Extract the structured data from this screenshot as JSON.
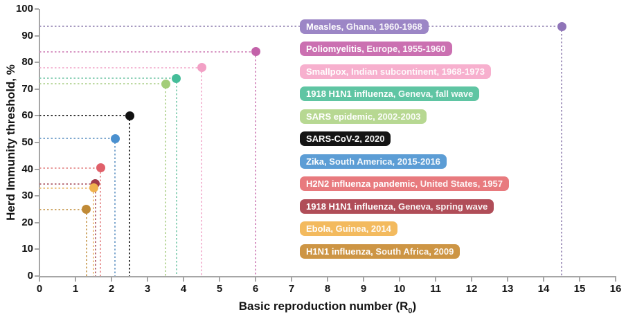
{
  "chart_data": {
    "type": "scatter",
    "title": "",
    "xlabel": "Basic reproduction number (R₀)",
    "xlabel_prefix": "Basic reproduction number (R",
    "xlabel_sub": "0",
    "xlabel_suffix": ")",
    "ylabel": "Herd Immunity threshold, %",
    "xlim": [
      0,
      16
    ],
    "ylim": [
      0,
      100
    ],
    "x_ticks": [
      0,
      1,
      2,
      3,
      4,
      5,
      6,
      7,
      8,
      9,
      10,
      11,
      12,
      13,
      14,
      15,
      16
    ],
    "y_ticks": [
      0,
      10,
      20,
      30,
      40,
      50,
      60,
      70,
      80,
      90,
      100
    ],
    "grid": false,
    "legend_position": "inside-plot-column",
    "axis_color": "#a6a6a6",
    "tick_label_color": "#141414",
    "series": [
      {
        "id": "measles",
        "name": "Measles",
        "detail": "Ghana, 1960-1968",
        "label": "Measles, Ghana, 1960-1968",
        "r0": 14.5,
        "hit": 93.5,
        "dot_color": "#8f74b8",
        "badge_color": "#9c86c6",
        "line_color": "#a79ac0"
      },
      {
        "id": "poliomyelitis",
        "name": "Poliomyelitis",
        "detail": "Europe, 1955-1960",
        "label": "Poliomyelitis, Europe, 1955-1960",
        "r0": 6.0,
        "hit": 84,
        "dot_color": "#c362a9",
        "badge_color": "#cb70b1",
        "line_color": "#d795c3"
      },
      {
        "id": "smallpox",
        "name": "Smallpox",
        "detail": "Indian subcontinent, 1968-1973",
        "label": "Smallpox, Indian subcontinent, 1968-1973",
        "r0": 4.5,
        "hit": 78,
        "dot_color": "#f2a0c5",
        "badge_color": "#f7b0ce",
        "line_color": "#f4b8d4"
      },
      {
        "id": "h1n1-1918-fall",
        "name": "1918 H1N1 influenza",
        "detail": "Geneva, fall wave",
        "label": "1918 H1N1 influenza, Geneva, fall wave",
        "r0": 3.8,
        "hit": 74,
        "dot_color": "#45bd99",
        "badge_color": "#5fc5a3",
        "line_color": "#8fd2b9"
      },
      {
        "id": "sars",
        "name": "SARS epidemic",
        "detail": "2002-2003",
        "label": "SARS epidemic, 2002-2003",
        "r0": 3.5,
        "hit": 72,
        "dot_color": "#a3cd79",
        "badge_color": "#b7d892",
        "line_color": "#bcd9a0"
      },
      {
        "id": "sars-cov-2",
        "name": "SARS-CoV-2",
        "detail": "2020",
        "label": "SARS-CoV-2, 2020",
        "r0": 2.5,
        "hit": 60,
        "dot_color": "#111111",
        "badge_color": "#141414",
        "line_color": "#3a3a3a"
      },
      {
        "id": "zika",
        "name": "Zika",
        "detail": "South America, 2015-2016",
        "label": "Zika, South America, 2015-2016",
        "r0": 2.1,
        "hit": 51.5,
        "dot_color": "#4a90cf",
        "badge_color": "#5c9dd5",
        "line_color": "#7fa8cf"
      },
      {
        "id": "h2n2-1957",
        "name": "H2N2 influenza pandemic",
        "detail": "United States, 1957",
        "label": "H2N2 influenza pandemic, United States, 1957",
        "r0": 1.7,
        "hit": 40.5,
        "dot_color": "#e0606a",
        "badge_color": "#e87a7e",
        "line_color": "#e89a9a"
      },
      {
        "id": "h1n1-1918-spring",
        "name": "1918 H1N1 influenza",
        "detail": "Geneva, spring wave",
        "label": "1918 H1N1 influenza, Geneva, spring wave",
        "r0": 1.55,
        "hit": 34.5,
        "dot_color": "#a03b49",
        "badge_color": "#b04d58",
        "line_color": "#b9717c"
      },
      {
        "id": "ebola",
        "name": "Ebola",
        "detail": "Guinea, 2014",
        "label": "Ebola, Guinea, 2014",
        "r0": 1.5,
        "hit": 33,
        "dot_color": "#efb14d",
        "badge_color": "#f3ba5e",
        "line_color": "#ecc588"
      },
      {
        "id": "h1n1-2009",
        "name": "H1N1 influenza",
        "detail": "South Africa, 2009",
        "label": "H1N1 influenza, South Africa, 2009",
        "r0": 1.3,
        "hit": 25,
        "dot_color": "#c08a36",
        "badge_color": "#cd9544",
        "line_color": "#cfa869"
      }
    ]
  }
}
